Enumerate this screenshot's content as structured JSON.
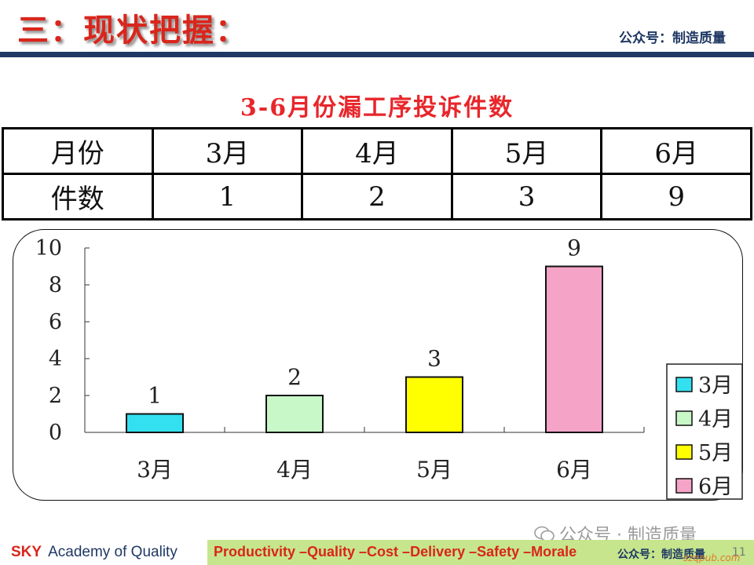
{
  "header": {
    "title": "三：现状把握：",
    "account": "公众号：制造质量"
  },
  "table": {
    "rows": [
      [
        "月份",
        "3月",
        "4月",
        "5月",
        "6月"
      ],
      [
        "件数",
        "1",
        "2",
        "3",
        "9"
      ]
    ]
  },
  "chart_data": {
    "type": "bar",
    "title": "3-6月份漏工序投诉件数",
    "categories": [
      "3月",
      "4月",
      "5月",
      "6月"
    ],
    "values": [
      1,
      2,
      3,
      9
    ],
    "ylim": [
      0,
      10
    ],
    "yticks": [
      0,
      2,
      4,
      6,
      8,
      10
    ],
    "xlabel": "",
    "ylabel": "",
    "data_labels": [
      "1",
      "2",
      "3",
      "9"
    ],
    "colors": [
      "#33e0f0",
      "#c8f7c8",
      "#ffff00",
      "#f5a3c7"
    ],
    "legend": {
      "position": "right",
      "entries": [
        "3月",
        "4月",
        "5月",
        "6月"
      ]
    }
  },
  "watermark": {
    "text": "公众号 · 制造质量",
    "site": "szqpub.com"
  },
  "footer": {
    "brand": "SKY",
    "brand_rest": "Academy of Quality",
    "slogan": "Productivity –Quality –Cost –Delivery –Safety –Morale",
    "account": "公众号：制造质量",
    "page": "11"
  }
}
